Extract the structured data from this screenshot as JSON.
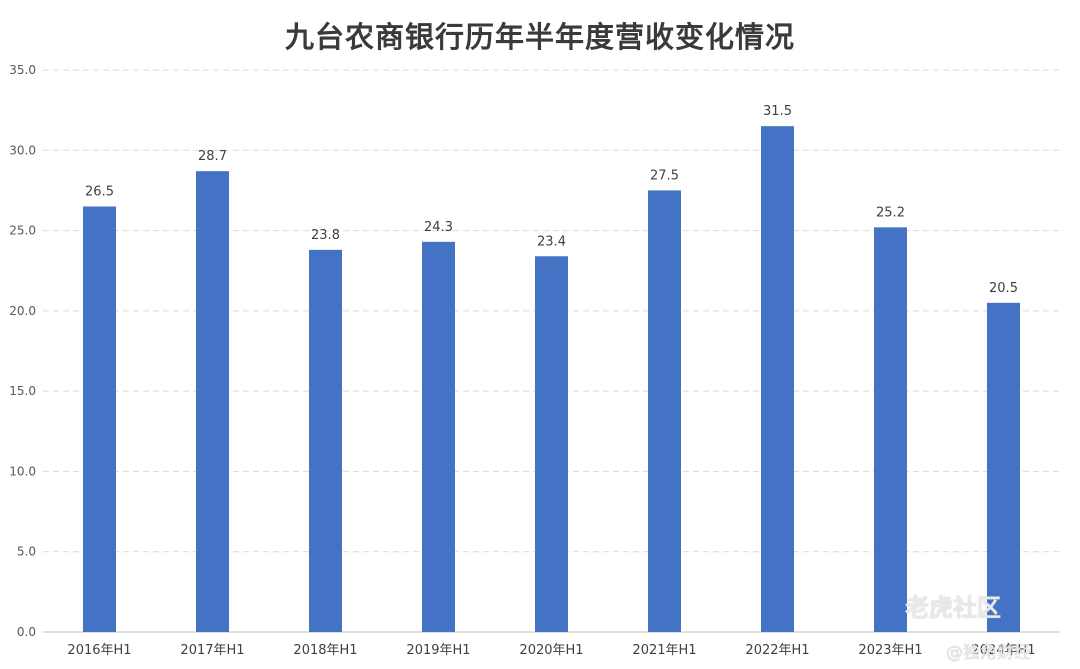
{
  "chart_data": {
    "type": "bar",
    "title": "九台农商银行历年半年度营收变化情况",
    "categories": [
      "2016年H1",
      "2017年H1",
      "2018年H1",
      "2019年H1",
      "2020年H1",
      "2021年H1",
      "2022年H1",
      "2023年H1",
      "2024年H1"
    ],
    "values": [
      26.5,
      28.7,
      23.8,
      24.3,
      23.4,
      27.5,
      31.5,
      25.2,
      20.5
    ],
    "value_labels": [
      "26.5",
      "28.7",
      "23.8",
      "24.3",
      "23.4",
      "27.5",
      "31.5",
      "25.2",
      "20.5"
    ],
    "yticks": [
      "0.0",
      "5.0",
      "10.0",
      "15.0",
      "20.0",
      "25.0",
      "30.0",
      "35.0"
    ],
    "ylim": [
      0,
      35
    ],
    "xlabel": "",
    "ylabel": "",
    "grid": true,
    "legend": "none",
    "bar_color": "#4472c4"
  },
  "watermark": {
    "brand": "老虎社区",
    "source": "@独角财经"
  }
}
